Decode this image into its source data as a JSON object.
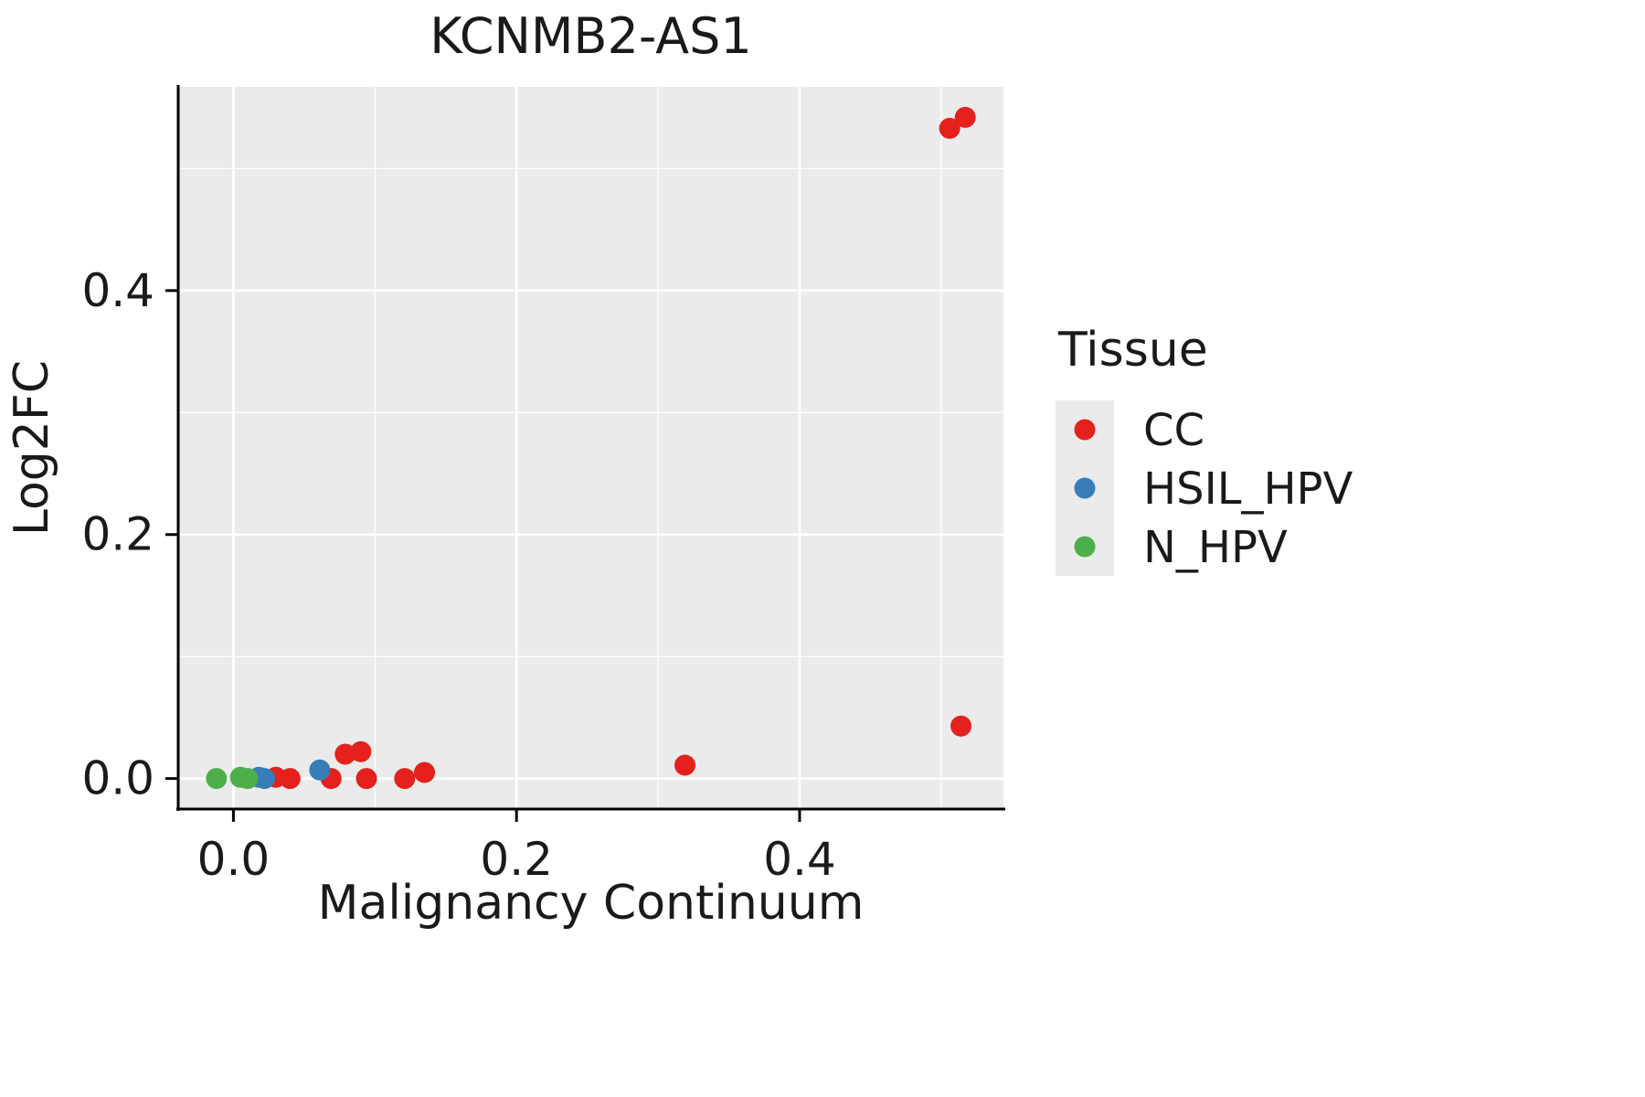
{
  "chart_data": {
    "type": "scatter",
    "title": "KCNMB2-AS1",
    "xlabel": "Malignancy Continuum",
    "ylabel": "Log2FC",
    "xlim": [
      -0.039,
      0.544
    ],
    "ylim": [
      -0.025,
      0.567
    ],
    "x_ticks": [
      0.0,
      0.2,
      0.4
    ],
    "x_tick_labels": [
      "0.0",
      "0.2",
      "0.4"
    ],
    "y_ticks": [
      0.0,
      0.2,
      0.4
    ],
    "y_tick_labels": [
      "0.0",
      "0.2",
      "0.4"
    ],
    "x_minor_ticks": [
      0.1,
      0.3,
      0.5
    ],
    "y_minor_ticks": [
      0.1,
      0.3,
      0.5
    ],
    "grid": true,
    "colors": {
      "panel_background": "#EBEBEB",
      "gridline": "#FFFFFF",
      "axis": "#000000",
      "text": "#1a1a1a"
    },
    "legend": {
      "title": "Tissue",
      "position": "right",
      "entries": [
        {
          "label": "CC",
          "color": "#E4211C"
        },
        {
          "label": "HSIL_HPV",
          "color": "#377EB8"
        },
        {
          "label": "N_HPV",
          "color": "#4DAF4A"
        }
      ]
    },
    "series": [
      {
        "name": "CC",
        "color": "#E4211C",
        "points": [
          [
            0.03,
            0.001
          ],
          [
            0.04,
            0.0
          ],
          [
            0.069,
            0.0
          ],
          [
            0.079,
            0.02
          ],
          [
            0.09,
            0.022
          ],
          [
            0.094,
            0.0
          ],
          [
            0.121,
            0.0
          ],
          [
            0.135,
            0.005
          ],
          [
            0.319,
            0.011
          ],
          [
            0.514,
            0.043
          ],
          [
            0.506,
            0.533
          ],
          [
            0.517,
            0.542
          ]
        ]
      },
      {
        "name": "HSIL_HPV",
        "color": "#377EB8",
        "points": [
          [
            0.018,
            0.001
          ],
          [
            0.022,
            0.0
          ],
          [
            0.061,
            0.007
          ]
        ]
      },
      {
        "name": "N_HPV",
        "color": "#4DAF4A",
        "points": [
          [
            -0.012,
            0.0
          ],
          [
            0.005,
            0.001
          ],
          [
            0.01,
            0.0
          ]
        ]
      }
    ]
  }
}
